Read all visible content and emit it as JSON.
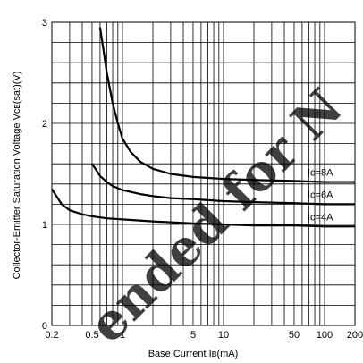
{
  "chart_data": {
    "type": "line",
    "title": "",
    "xlabel": "Base Current Iʙ(mA)",
    "ylabel": "Collector-Emitter Saturation Voltage Vᴄᴇ(sat)(V)",
    "xscale": "log",
    "xlim": [
      0.2,
      200
    ],
    "ylim": [
      0,
      3
    ],
    "grid": true,
    "x_ticks": [
      {
        "value": 0.2,
        "label": "0.2"
      },
      {
        "value": 0.5,
        "label": "0.5"
      },
      {
        "value": 1,
        "label": "1"
      },
      {
        "value": 5,
        "label": "5"
      },
      {
        "value": 10,
        "label": "10"
      },
      {
        "value": 50,
        "label": "50"
      },
      {
        "value": 100,
        "label": "100"
      },
      {
        "value": 200,
        "label": "200"
      }
    ],
    "y_ticks": [
      {
        "value": 0,
        "label": "0"
      },
      {
        "value": 1,
        "label": "1"
      },
      {
        "value": 2,
        "label": "2"
      },
      {
        "value": 3,
        "label": "3"
      }
    ],
    "series": [
      {
        "name": "Ic=8A",
        "x": [
          0.6,
          0.65,
          0.7,
          0.8,
          0.9,
          1,
          1.2,
          1.5,
          2,
          3,
          5,
          10,
          20,
          50,
          100,
          200
        ],
        "y": [
          2.95,
          2.72,
          2.5,
          2.2,
          2.0,
          1.85,
          1.72,
          1.62,
          1.55,
          1.5,
          1.47,
          1.45,
          1.44,
          1.43,
          1.42,
          1.42
        ]
      },
      {
        "name": "Ic=6A",
        "x": [
          0.5,
          0.6,
          0.7,
          0.8,
          1,
          1.5,
          2,
          3,
          5,
          10,
          20,
          50,
          100,
          200
        ],
        "y": [
          1.6,
          1.48,
          1.42,
          1.38,
          1.34,
          1.3,
          1.28,
          1.26,
          1.25,
          1.23,
          1.22,
          1.21,
          1.2,
          1.2
        ]
      },
      {
        "name": "Ic=4A",
        "x": [
          0.2,
          0.25,
          0.3,
          0.4,
          0.5,
          0.7,
          1,
          2,
          5,
          10,
          20,
          50,
          100,
          200
        ],
        "y": [
          1.35,
          1.2,
          1.14,
          1.1,
          1.08,
          1.06,
          1.05,
          1.03,
          1.01,
          1.0,
          0.99,
          0.99,
          0.98,
          0.98
        ]
      }
    ],
    "annotations": [
      {
        "text": "Ic=8A",
        "series": "Ic=8A"
      },
      {
        "text": "Ic=6A",
        "series": "Ic=6A"
      },
      {
        "text": "Ic=4A",
        "series": "Ic=4A"
      }
    ]
  },
  "watermark": {
    "text": "ended for N",
    "color": "#d0d0d0"
  }
}
